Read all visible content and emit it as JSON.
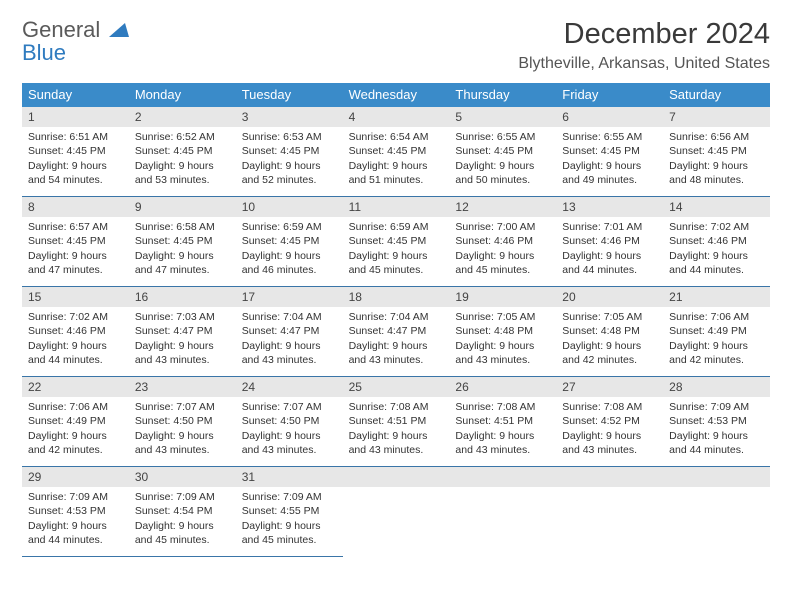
{
  "brand": {
    "line1": "General",
    "line2": "Blue"
  },
  "title": "December 2024",
  "location": "Blytheville, Arkansas, United States",
  "colors": {
    "header_bg": "#3a8bc9",
    "rule": "#3a75a8",
    "daynum_bg": "#e7e7e7",
    "text": "#333333",
    "brand_blue": "#2f7bbf"
  },
  "dow": [
    "Sunday",
    "Monday",
    "Tuesday",
    "Wednesday",
    "Thursday",
    "Friday",
    "Saturday"
  ],
  "days": [
    {
      "n": "1",
      "sr": "6:51 AM",
      "ss": "4:45 PM",
      "dl": "9 hours and 54 minutes."
    },
    {
      "n": "2",
      "sr": "6:52 AM",
      "ss": "4:45 PM",
      "dl": "9 hours and 53 minutes."
    },
    {
      "n": "3",
      "sr": "6:53 AM",
      "ss": "4:45 PM",
      "dl": "9 hours and 52 minutes."
    },
    {
      "n": "4",
      "sr": "6:54 AM",
      "ss": "4:45 PM",
      "dl": "9 hours and 51 minutes."
    },
    {
      "n": "5",
      "sr": "6:55 AM",
      "ss": "4:45 PM",
      "dl": "9 hours and 50 minutes."
    },
    {
      "n": "6",
      "sr": "6:55 AM",
      "ss": "4:45 PM",
      "dl": "9 hours and 49 minutes."
    },
    {
      "n": "7",
      "sr": "6:56 AM",
      "ss": "4:45 PM",
      "dl": "9 hours and 48 minutes."
    },
    {
      "n": "8",
      "sr": "6:57 AM",
      "ss": "4:45 PM",
      "dl": "9 hours and 47 minutes."
    },
    {
      "n": "9",
      "sr": "6:58 AM",
      "ss": "4:45 PM",
      "dl": "9 hours and 47 minutes."
    },
    {
      "n": "10",
      "sr": "6:59 AM",
      "ss": "4:45 PM",
      "dl": "9 hours and 46 minutes."
    },
    {
      "n": "11",
      "sr": "6:59 AM",
      "ss": "4:45 PM",
      "dl": "9 hours and 45 minutes."
    },
    {
      "n": "12",
      "sr": "7:00 AM",
      "ss": "4:46 PM",
      "dl": "9 hours and 45 minutes."
    },
    {
      "n": "13",
      "sr": "7:01 AM",
      "ss": "4:46 PM",
      "dl": "9 hours and 44 minutes."
    },
    {
      "n": "14",
      "sr": "7:02 AM",
      "ss": "4:46 PM",
      "dl": "9 hours and 44 minutes."
    },
    {
      "n": "15",
      "sr": "7:02 AM",
      "ss": "4:46 PM",
      "dl": "9 hours and 44 minutes."
    },
    {
      "n": "16",
      "sr": "7:03 AM",
      "ss": "4:47 PM",
      "dl": "9 hours and 43 minutes."
    },
    {
      "n": "17",
      "sr": "7:04 AM",
      "ss": "4:47 PM",
      "dl": "9 hours and 43 minutes."
    },
    {
      "n": "18",
      "sr": "7:04 AM",
      "ss": "4:47 PM",
      "dl": "9 hours and 43 minutes."
    },
    {
      "n": "19",
      "sr": "7:05 AM",
      "ss": "4:48 PM",
      "dl": "9 hours and 43 minutes."
    },
    {
      "n": "20",
      "sr": "7:05 AM",
      "ss": "4:48 PM",
      "dl": "9 hours and 42 minutes."
    },
    {
      "n": "21",
      "sr": "7:06 AM",
      "ss": "4:49 PM",
      "dl": "9 hours and 42 minutes."
    },
    {
      "n": "22",
      "sr": "7:06 AM",
      "ss": "4:49 PM",
      "dl": "9 hours and 42 minutes."
    },
    {
      "n": "23",
      "sr": "7:07 AM",
      "ss": "4:50 PM",
      "dl": "9 hours and 43 minutes."
    },
    {
      "n": "24",
      "sr": "7:07 AM",
      "ss": "4:50 PM",
      "dl": "9 hours and 43 minutes."
    },
    {
      "n": "25",
      "sr": "7:08 AM",
      "ss": "4:51 PM",
      "dl": "9 hours and 43 minutes."
    },
    {
      "n": "26",
      "sr": "7:08 AM",
      "ss": "4:51 PM",
      "dl": "9 hours and 43 minutes."
    },
    {
      "n": "27",
      "sr": "7:08 AM",
      "ss": "4:52 PM",
      "dl": "9 hours and 43 minutes."
    },
    {
      "n": "28",
      "sr": "7:09 AM",
      "ss": "4:53 PM",
      "dl": "9 hours and 44 minutes."
    },
    {
      "n": "29",
      "sr": "7:09 AM",
      "ss": "4:53 PM",
      "dl": "9 hours and 44 minutes."
    },
    {
      "n": "30",
      "sr": "7:09 AM",
      "ss": "4:54 PM",
      "dl": "9 hours and 45 minutes."
    },
    {
      "n": "31",
      "sr": "7:09 AM",
      "ss": "4:55 PM",
      "dl": "9 hours and 45 minutes."
    }
  ],
  "labels": {
    "sunrise": "Sunrise: ",
    "sunset": "Sunset: ",
    "daylight": "Daylight: "
  }
}
